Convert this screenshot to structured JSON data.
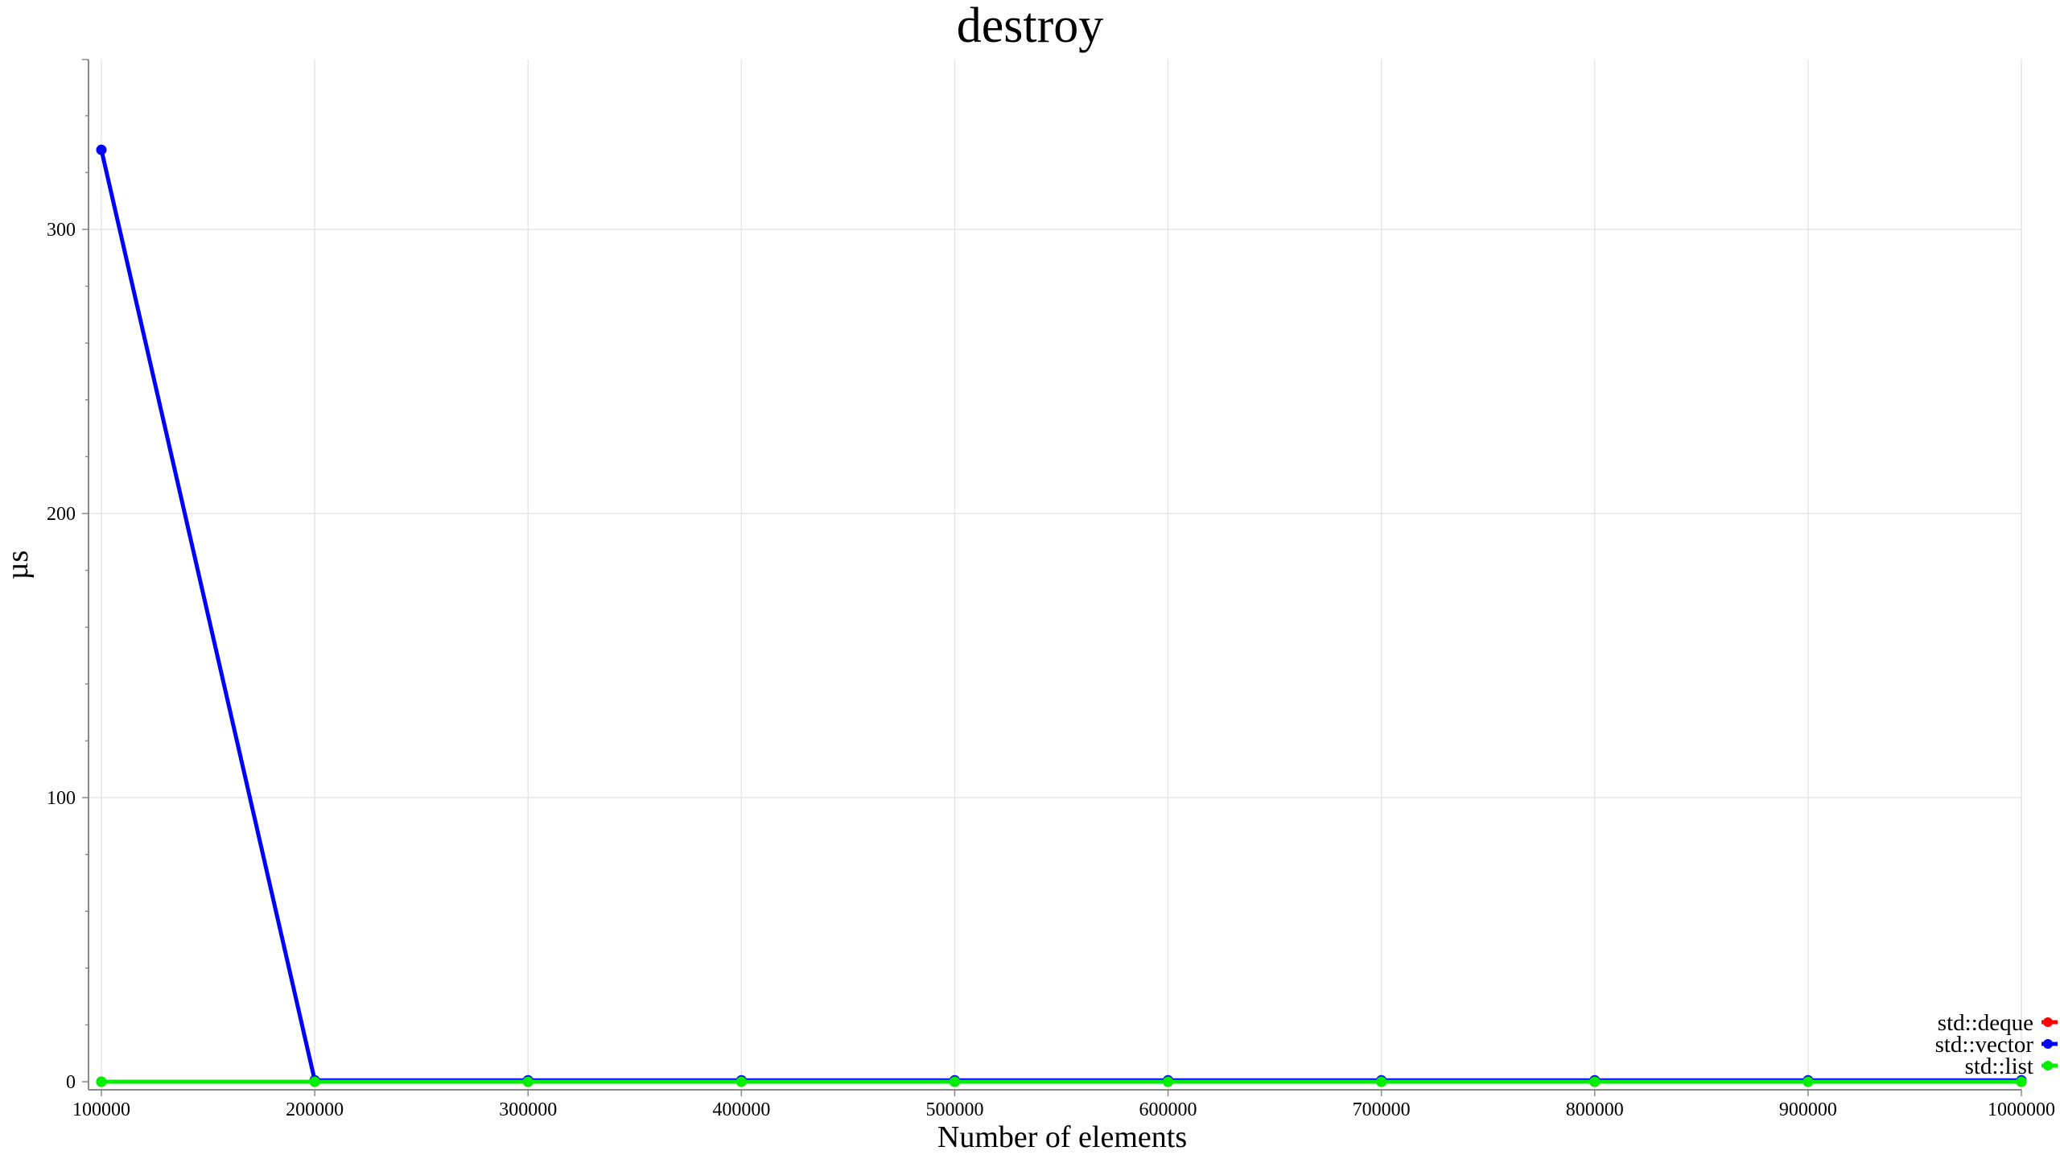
{
  "chart_data": {
    "type": "line",
    "title": "destroy",
    "xlabel": "Number of elements",
    "ylabel": "µs",
    "x": [
      100000,
      200000,
      300000,
      400000,
      500000,
      600000,
      700000,
      800000,
      900000,
      1000000
    ],
    "x_ticks": [
      "100000",
      "200000",
      "300000",
      "400000",
      "500000",
      "600000",
      "700000",
      "800000",
      "900000",
      "1000000"
    ],
    "y_ticks": [
      "0",
      "100",
      "200",
      "300"
    ],
    "y_tick_values": [
      0,
      100,
      200,
      300
    ],
    "xlim": [
      93000,
      1000000
    ],
    "ylim": [
      -6,
      360
    ],
    "grid": true,
    "legend_position": "bottom-right",
    "series": [
      {
        "name": "std::deque",
        "color": "#ff0000",
        "values": [
          0,
          0,
          0,
          0,
          0,
          0,
          0,
          0,
          0,
          0
        ]
      },
      {
        "name": "std::vector",
        "color": "#0000ff",
        "values": [
          328,
          0.5,
          0.5,
          0.5,
          0.5,
          0.5,
          0.5,
          0.5,
          0.5,
          0.5
        ]
      },
      {
        "name": "std::list",
        "color": "#00ee00",
        "values": [
          0,
          0,
          0,
          0,
          0,
          0,
          0,
          0,
          0,
          0
        ]
      }
    ]
  }
}
